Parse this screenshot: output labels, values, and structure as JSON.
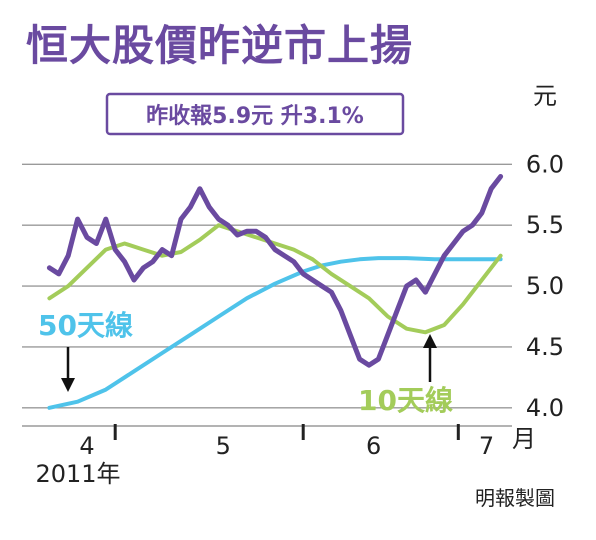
{
  "title": "恒大股價昨逆市上揚",
  "badge": "昨收報5.9元 升3.1%",
  "credit": "明報製圖",
  "chart_data": {
    "type": "line",
    "title": "恒大股價昨逆市上揚",
    "annotation": "昨收報5.9元 升3.1%",
    "ylabel": "元",
    "ylim": [
      3.9,
      6.2
    ],
    "yticks": [
      4.0,
      4.5,
      5.0,
      5.5,
      6.0
    ],
    "ytick_labels": [
      "4.0",
      "4.5",
      "5.0",
      "5.5",
      "6.0"
    ],
    "xlim": [
      0,
      100
    ],
    "xticks": [
      {
        "x": 10,
        "label": "4"
      },
      {
        "x": 39,
        "label": "5"
      },
      {
        "x": 71,
        "label": "6"
      },
      {
        "x": 95,
        "label": "7"
      }
    ],
    "xminor_ticks": [
      16,
      56,
      89
    ],
    "month_unit": "月",
    "year_label": "2011年",
    "grid": true,
    "series": [
      {
        "name": "",
        "color": "#6a4aa0",
        "x": [
          2,
          4,
          6,
          8,
          10,
          12,
          14,
          16,
          18,
          20,
          22,
          24,
          26,
          28,
          30,
          32,
          34,
          36,
          38,
          40,
          42,
          44,
          46,
          48,
          50,
          52,
          54,
          56,
          58,
          60,
          62,
          64,
          66,
          68,
          70,
          72,
          74,
          76,
          78,
          80,
          82,
          84,
          86,
          88,
          90,
          92,
          94,
          96,
          98
        ],
        "y": [
          5.15,
          5.1,
          5.25,
          5.55,
          5.4,
          5.35,
          5.55,
          5.3,
          5.2,
          5.05,
          5.15,
          5.2,
          5.3,
          5.25,
          5.55,
          5.65,
          5.8,
          5.65,
          5.55,
          5.5,
          5.42,
          5.45,
          5.45,
          5.4,
          5.3,
          5.25,
          5.2,
          5.1,
          5.05,
          5.0,
          4.95,
          4.8,
          4.6,
          4.4,
          4.35,
          4.4,
          4.6,
          4.8,
          5.0,
          5.05,
          4.95,
          5.1,
          5.25,
          5.35,
          5.45,
          5.5,
          5.6,
          5.8,
          5.9
        ]
      },
      {
        "name": "10天線",
        "color": "#a3cc5a",
        "x": [
          2,
          6,
          10,
          14,
          18,
          22,
          26,
          30,
          34,
          38,
          42,
          46,
          50,
          54,
          58,
          62,
          66,
          70,
          74,
          78,
          82,
          86,
          90,
          94,
          98
        ],
        "y": [
          4.9,
          5.0,
          5.15,
          5.3,
          5.35,
          5.3,
          5.25,
          5.28,
          5.38,
          5.5,
          5.45,
          5.4,
          5.35,
          5.3,
          5.22,
          5.1,
          5.0,
          4.9,
          4.75,
          4.65,
          4.62,
          4.68,
          4.85,
          5.05,
          5.25
        ]
      },
      {
        "name": "50天線",
        "color": "#4fc3ea",
        "x": [
          2,
          8,
          14,
          20,
          26,
          32,
          38,
          44,
          50,
          56,
          60,
          64,
          68,
          72,
          78,
          84,
          90,
          98
        ],
        "y": [
          4.0,
          4.05,
          4.15,
          4.3,
          4.45,
          4.6,
          4.75,
          4.9,
          5.02,
          5.12,
          5.17,
          5.2,
          5.22,
          5.23,
          5.23,
          5.22,
          5.22,
          5.22
        ]
      }
    ],
    "annotations": [
      {
        "text": "50天線",
        "color": "#4fc3ea",
        "series": "50天線",
        "arrow": "down"
      },
      {
        "text": "10天線",
        "color": "#a3cc5a",
        "series": "10天線",
        "arrow": "up"
      }
    ]
  }
}
